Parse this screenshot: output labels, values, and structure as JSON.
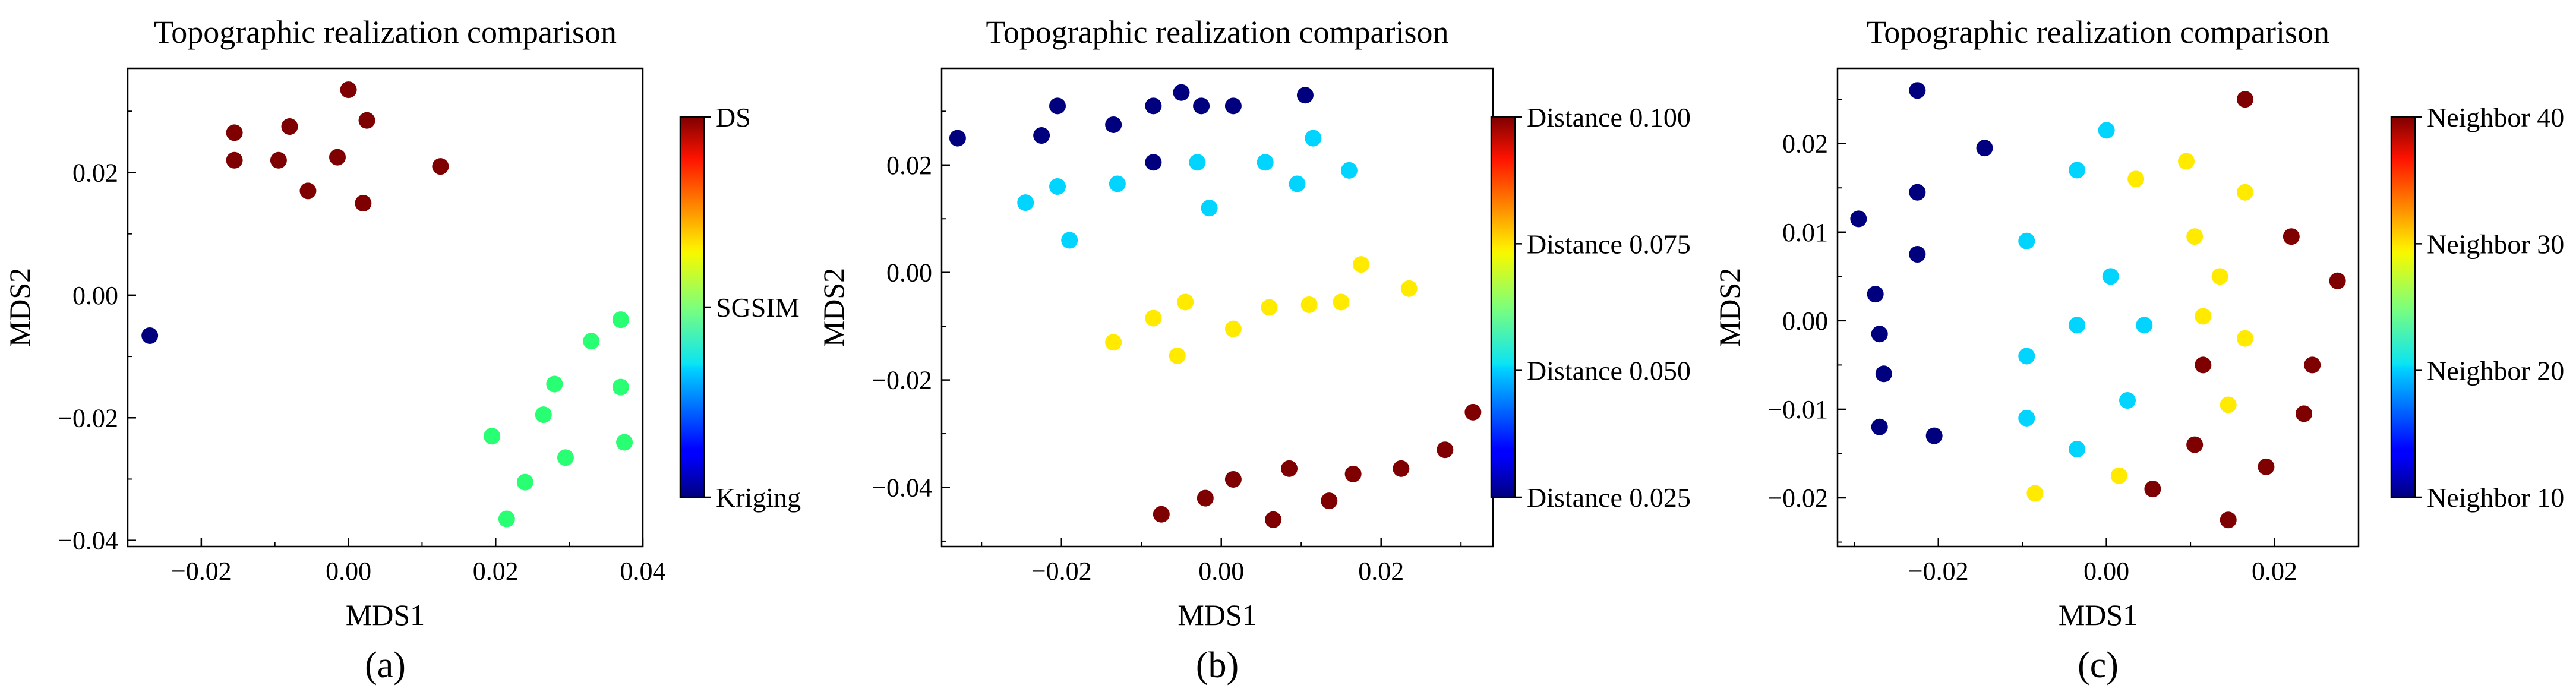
{
  "chart_data": [
    {
      "type": "scatter",
      "panel_label": "(a)",
      "title": "Topographic realization comparison",
      "xlabel": "MDS1",
      "ylabel": "MDS2",
      "xlim": [
        -0.03,
        0.04
      ],
      "ylim": [
        -0.041,
        0.037
      ],
      "xticks": [
        -0.02,
        0.0,
        0.02,
        0.04
      ],
      "yticks": [
        -0.04,
        -0.02,
        0.0,
        0.02
      ],
      "xtick_labels": [
        "−0.02",
        "0.00",
        "0.02",
        "0.04"
      ],
      "ytick_labels": [
        "−0.04",
        "−0.02",
        "0.00",
        "0.02"
      ],
      "colorbar": {
        "min": 0,
        "max": 2,
        "ticks": [
          0,
          1,
          2
        ],
        "tick_labels": [
          "Kriging",
          "SGSIM",
          "DS"
        ]
      },
      "series": [
        {
          "name": "Kriging",
          "cvalue": 0,
          "color": "#00007f",
          "points": [
            [
              -0.027,
              -0.0066
            ]
          ]
        },
        {
          "name": "SGSIM",
          "cvalue": 1,
          "color": "#29ff73",
          "points": [
            [
              0.0195,
              -0.023
            ],
            [
              0.0215,
              -0.0365
            ],
            [
              0.024,
              -0.0305
            ],
            [
              0.0265,
              -0.0195
            ],
            [
              0.028,
              -0.0145
            ],
            [
              0.0295,
              -0.0265
            ],
            [
              0.033,
              -0.0075
            ],
            [
              0.037,
              -0.004
            ],
            [
              0.037,
              -0.015
            ],
            [
              0.0375,
              -0.024
            ]
          ]
        },
        {
          "name": "DS",
          "cvalue": 2,
          "color": "#7f0000",
          "points": [
            [
              -0.0155,
              0.0265
            ],
            [
              -0.0155,
              0.022
            ],
            [
              -0.0095,
              0.022
            ],
            [
              -0.008,
              0.0275
            ],
            [
              -0.0055,
              0.017
            ],
            [
              -0.0015,
              0.0225
            ],
            [
              0.0,
              0.0335
            ],
            [
              0.002,
              0.015
            ],
            [
              0.0025,
              0.0285
            ],
            [
              0.0125,
              0.021
            ]
          ]
        }
      ]
    },
    {
      "type": "scatter",
      "panel_label": "(b)",
      "title": "Topographic realization comparison",
      "xlabel": "MDS1",
      "ylabel": "MDS2",
      "xlim": [
        -0.035,
        0.034
      ],
      "ylim": [
        -0.051,
        0.038
      ],
      "xticks": [
        -0.02,
        0.0,
        0.02
      ],
      "yticks": [
        -0.04,
        -0.02,
        0.0,
        0.02
      ],
      "xtick_labels": [
        "−0.02",
        "0.00",
        "0.02"
      ],
      "ytick_labels": [
        "−0.04",
        "−0.02",
        "0.00",
        "0.02"
      ],
      "colorbar": {
        "min": 0.025,
        "max": 0.1,
        "ticks": [
          0.025,
          0.05,
          0.075,
          0.1
        ],
        "tick_labels": [
          "Distance 0.025",
          "Distance 0.050",
          "Distance 0.075",
          "Distance 0.100"
        ]
      },
      "series": [
        {
          "name": "Distance 0.025",
          "cvalue": 0.025,
          "color": "#00007f",
          "points": [
            [
              -0.033,
              0.025
            ],
            [
              -0.0225,
              0.0255
            ],
            [
              -0.0205,
              0.031
            ],
            [
              -0.0135,
              0.0275
            ],
            [
              -0.0085,
              0.031
            ],
            [
              -0.0085,
              0.0205
            ],
            [
              -0.005,
              0.0335
            ],
            [
              -0.0025,
              0.031
            ],
            [
              0.0015,
              0.031
            ],
            [
              0.0105,
              0.033
            ]
          ]
        },
        {
          "name": "Distance 0.050",
          "cvalue": 0.05,
          "color": "#00d4ff",
          "points": [
            [
              -0.0245,
              0.013
            ],
            [
              -0.0205,
              0.016
            ],
            [
              -0.019,
              0.006
            ],
            [
              -0.013,
              0.0165
            ],
            [
              -0.003,
              0.0205
            ],
            [
              -0.0015,
              0.012
            ],
            [
              0.0055,
              0.0205
            ],
            [
              0.0095,
              0.0165
            ],
            [
              0.0115,
              0.025
            ],
            [
              0.016,
              0.019
            ]
          ]
        },
        {
          "name": "Distance 0.075",
          "cvalue": 0.075,
          "color": "#ffea00",
          "points": [
            [
              -0.0135,
              -0.013
            ],
            [
              -0.0085,
              -0.0085
            ],
            [
              -0.0055,
              -0.0155
            ],
            [
              -0.0045,
              -0.0055
            ],
            [
              0.0015,
              -0.0105
            ],
            [
              0.006,
              -0.0065
            ],
            [
              0.011,
              -0.006
            ],
            [
              0.015,
              -0.0055
            ],
            [
              0.0175,
              0.0015
            ],
            [
              0.0235,
              -0.003
            ]
          ]
        },
        {
          "name": "Distance 0.100",
          "cvalue": 0.1,
          "color": "#7f0000",
          "points": [
            [
              -0.0075,
              -0.045
            ],
            [
              -0.002,
              -0.042
            ],
            [
              0.0015,
              -0.0385
            ],
            [
              0.0065,
              -0.046
            ],
            [
              0.0085,
              -0.0365
            ],
            [
              0.0135,
              -0.0425
            ],
            [
              0.0165,
              -0.0375
            ],
            [
              0.0225,
              -0.0365
            ],
            [
              0.028,
              -0.033
            ],
            [
              0.0315,
              -0.026
            ]
          ]
        }
      ]
    },
    {
      "type": "scatter",
      "panel_label": "(c)",
      "title": "Topographic realization comparison",
      "xlabel": "MDS1",
      "ylabel": "MDS2",
      "xlim": [
        -0.032,
        0.03
      ],
      "ylim": [
        -0.0255,
        0.0285
      ],
      "xticks": [
        -0.02,
        0.0,
        0.02
      ],
      "yticks": [
        -0.02,
        -0.01,
        0.0,
        0.01,
        0.02
      ],
      "xtick_labels": [
        "−0.02",
        "0.00",
        "0.02"
      ],
      "ytick_labels": [
        "−0.02",
        "−0.01",
        "0.00",
        "0.01",
        "0.02"
      ],
      "colorbar": {
        "min": 10,
        "max": 40,
        "ticks": [
          10,
          20,
          30,
          40
        ],
        "tick_labels": [
          "Neighbor 10",
          "Neighbor 20",
          "Neighbor 30",
          "Neighbor 40"
        ]
      },
      "series": [
        {
          "name": "Neighbor 10",
          "cvalue": 10,
          "color": "#00007f",
          "points": [
            [
              -0.0295,
              0.0115
            ],
            [
              -0.0275,
              0.003
            ],
            [
              -0.027,
              -0.0015
            ],
            [
              -0.0265,
              -0.006
            ],
            [
              -0.027,
              -0.012
            ],
            [
              -0.0225,
              0.026
            ],
            [
              -0.0225,
              0.0145
            ],
            [
              -0.0225,
              0.0075
            ],
            [
              -0.0205,
              -0.013
            ],
            [
              -0.0145,
              0.0195
            ]
          ]
        },
        {
          "name": "Neighbor 20",
          "cvalue": 20,
          "color": "#00d4ff",
          "points": [
            [
              -0.0095,
              0.009
            ],
            [
              -0.0095,
              -0.004
            ],
            [
              -0.0095,
              -0.011
            ],
            [
              -0.0035,
              0.017
            ],
            [
              -0.0035,
              -0.0005
            ],
            [
              -0.0035,
              -0.0145
            ],
            [
              0.0,
              0.0215
            ],
            [
              0.0005,
              0.005
            ],
            [
              0.0025,
              -0.009
            ],
            [
              0.0045,
              -0.0005
            ]
          ]
        },
        {
          "name": "Neighbor 30",
          "cvalue": 30,
          "color": "#ffea00",
          "points": [
            [
              -0.0085,
              -0.0195
            ],
            [
              0.0015,
              -0.0175
            ],
            [
              0.0035,
              0.016
            ],
            [
              0.0095,
              0.018
            ],
            [
              0.0105,
              0.0095
            ],
            [
              0.0115,
              0.0005
            ],
            [
              0.0135,
              0.005
            ],
            [
              0.0145,
              -0.0095
            ],
            [
              0.0165,
              0.0145
            ],
            [
              0.0165,
              -0.002
            ]
          ]
        },
        {
          "name": "Neighbor 40",
          "cvalue": 40,
          "color": "#7f0000",
          "points": [
            [
              0.0055,
              -0.019
            ],
            [
              0.0105,
              -0.014
            ],
            [
              0.0115,
              -0.005
            ],
            [
              0.0145,
              -0.0225
            ],
            [
              0.0165,
              0.025
            ],
            [
              0.019,
              -0.0165
            ],
            [
              0.022,
              0.0095
            ],
            [
              0.0235,
              -0.0105
            ],
            [
              0.0245,
              -0.005
            ],
            [
              0.0275,
              0.0045
            ]
          ]
        }
      ]
    }
  ]
}
